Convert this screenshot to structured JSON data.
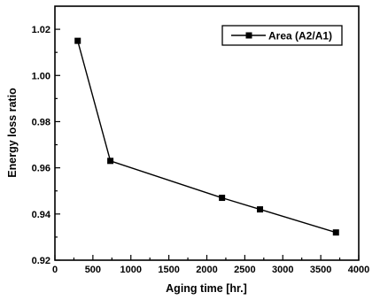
{
  "chart_data": {
    "type": "line",
    "xlabel": "Aging time [hr.]",
    "ylabel": "Energy loss ratio",
    "xlim": [
      0,
      4000
    ],
    "ylim": [
      0.92,
      1.03
    ],
    "x_ticks": [
      0,
      500,
      1000,
      1500,
      2000,
      2500,
      3000,
      3500,
      4000
    ],
    "y_ticks": [
      0.92,
      0.94,
      0.96,
      0.98,
      1.0,
      1.02
    ],
    "x_tick_labels": [
      "0",
      "500",
      "1000",
      "1500",
      "2000",
      "2500",
      "3000",
      "3500",
      "4000"
    ],
    "y_tick_labels": [
      "0.92",
      "0.94",
      "0.96",
      "0.98",
      "1.00",
      "1.02"
    ],
    "grid": false,
    "legend_position": "top-right",
    "series": [
      {
        "name": "Area (A2/A1)",
        "marker": "square",
        "x": [
          300,
          730,
          2200,
          2700,
          3700
        ],
        "y": [
          1.015,
          0.963,
          0.947,
          0.942,
          0.932
        ]
      }
    ]
  }
}
